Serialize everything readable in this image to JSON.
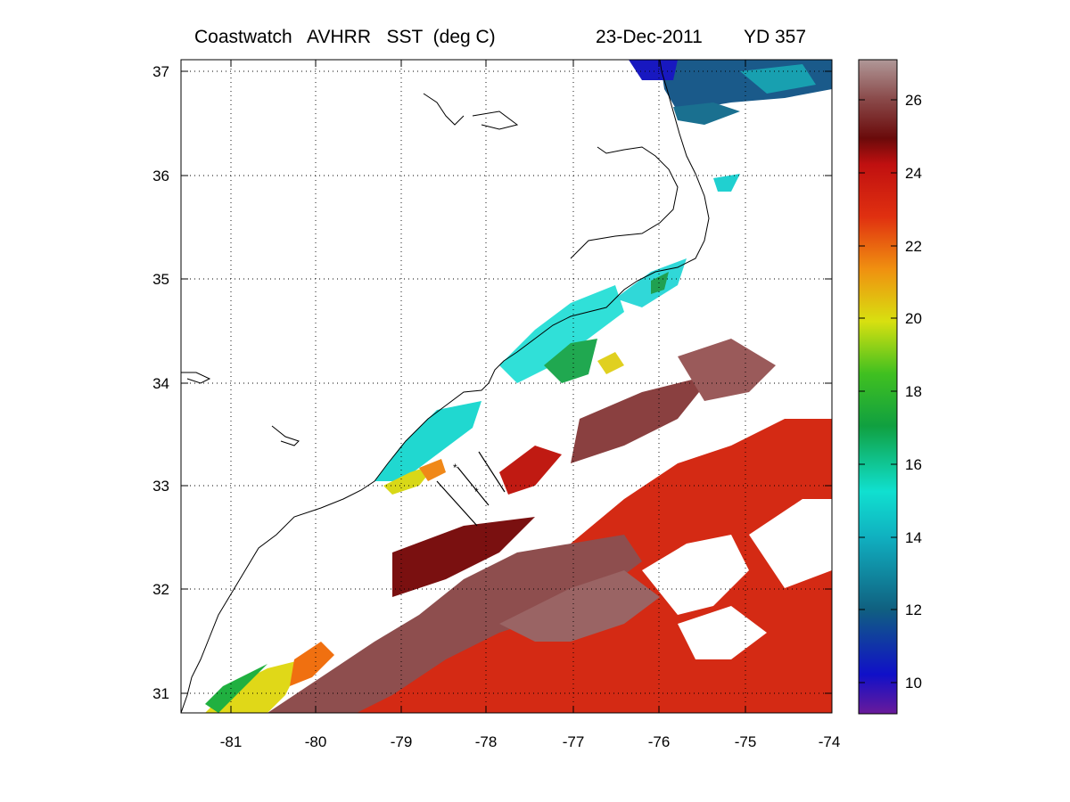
{
  "title": {
    "product": "Coastwatch   AVHRR   SST  (deg C)",
    "date": "23-Dec-2011",
    "yearday": "YD 357"
  },
  "map": {
    "lon_ticks": [
      "-81",
      "-80",
      "-79",
      "-78",
      "-77",
      "-76",
      "-75",
      "-74"
    ],
    "lat_ticks": [
      "37",
      "36",
      "35",
      "34",
      "33",
      "32",
      "31"
    ],
    "lon_range": [
      -81.5,
      -74
    ],
    "lat_range": [
      30.8,
      37.1
    ],
    "grid": "dotted"
  },
  "colorbar": {
    "ticks": [
      "26",
      "24",
      "22",
      "20",
      "18",
      "16",
      "14",
      "12",
      "10"
    ],
    "range": [
      9,
      27
    ],
    "colormap": "jet-like with brown top",
    "colors": [
      "#6a1a9a",
      "#1010c8",
      "#106080",
      "#10b0c0",
      "#10e0d0",
      "#10a040",
      "#40c020",
      "#d8e010",
      "#f09010",
      "#e03010",
      "#c01010",
      "#6a0a0a",
      "#8a4a4a",
      "#b09898"
    ]
  }
}
